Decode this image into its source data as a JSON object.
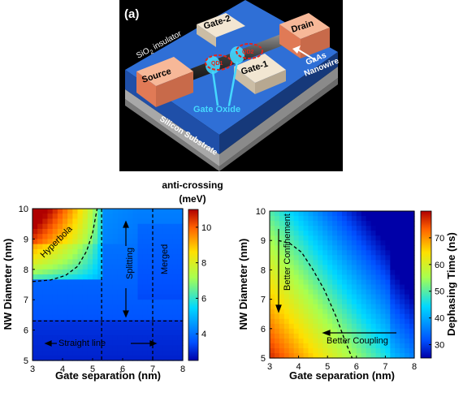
{
  "panel_a": {
    "label": "(a)",
    "labels": {
      "gate2": "Gate-2",
      "gate1": "Gate-1",
      "drain": "Drain",
      "source": "Source",
      "qd1": "QD1",
      "qd2": "QD2",
      "insulator_pre": "SiO",
      "insulator_sub": "2",
      "insulator_post": " insulator",
      "gaas": "GaAs",
      "nanowire": "Nanowire",
      "gate_oxide": "Gate Oxide",
      "substrate": "Silicon Substrate"
    },
    "colors": {
      "background": "#000000",
      "insulator": "#2f6fd6",
      "substrate": "#9a9a9a",
      "contact": "#f4a07a",
      "gate": "#f2e6d2",
      "oxide": "#45d8ff",
      "qd_outline": "#e0261e"
    }
  },
  "chart_data": [
    {
      "type": "heatmap",
      "title": "",
      "xlabel": "Gate separation (nm)",
      "ylabel": "NW Diameter (nm)",
      "xlim": [
        3,
        8
      ],
      "ylim": [
        5,
        10
      ],
      "xticks": [
        "3",
        "4",
        "5",
        "6",
        "7",
        "8"
      ],
      "yticks": [
        "5",
        "6",
        "7",
        "8",
        "9",
        "10"
      ],
      "colorbar": {
        "title_line1": "anti-crossing",
        "title_line2": "(meV)",
        "range": [
          2.5,
          11
        ],
        "ticks": [
          "4",
          "6",
          "8",
          "10"
        ]
      },
      "annotations": {
        "hyperbola": "Hyperbola",
        "splitting": "Splitting",
        "merged": "Merged",
        "straight_line": "Straight line"
      },
      "boundary_lines": {
        "hyperbola_curve": [
          [
            3,
            7.6
          ],
          [
            3.6,
            7.65
          ],
          [
            4.1,
            7.8
          ],
          [
            4.5,
            8.1
          ],
          [
            4.8,
            8.6
          ],
          [
            5.0,
            9.2
          ],
          [
            5.15,
            10
          ]
        ],
        "vertical_x": [
          5.3,
          7.0
        ],
        "horizontal_y": 6.3
      }
    },
    {
      "type": "heatmap",
      "title": "",
      "xlabel": "Gate separation (nm)",
      "ylabel": "NW Diameter (nm)",
      "xlim": [
        3,
        8
      ],
      "ylim": [
        5,
        10
      ],
      "xticks": [
        "3",
        "4",
        "5",
        "6",
        "7",
        "8"
      ],
      "yticks": [
        "5",
        "6",
        "7",
        "8",
        "9",
        "10"
      ],
      "colorbar": {
        "title": "Dephasing Time (ns)",
        "range": [
          25,
          80
        ],
        "ticks": [
          "30",
          "40",
          "50",
          "60",
          "70"
        ]
      },
      "annotations": {
        "better_confinement": "Better Confinement",
        "better_coupling": "Better Coupling"
      },
      "boundary_lines": {
        "confinement_curve": [
          [
            3.3,
            9.0
          ],
          [
            3.7,
            8.9
          ],
          [
            4.1,
            8.6
          ],
          [
            4.5,
            8.0
          ],
          [
            4.9,
            7.3
          ],
          [
            5.3,
            6.4
          ],
          [
            5.6,
            5.6
          ],
          [
            5.85,
            5.0
          ]
        ]
      }
    }
  ]
}
